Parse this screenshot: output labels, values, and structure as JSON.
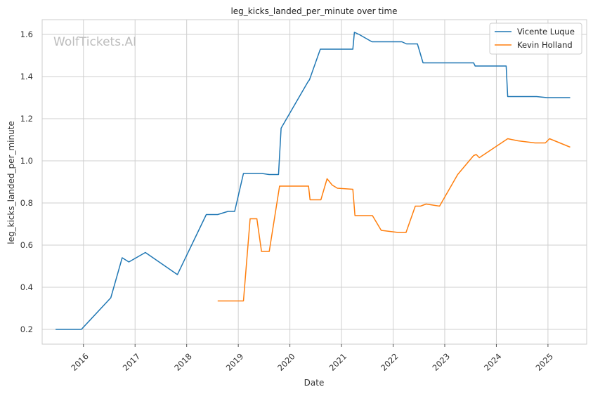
{
  "chart_data": {
    "type": "line",
    "title": "leg_kicks_landed_per_minute over time",
    "xlabel": "Date",
    "ylabel": "leg_kicks_landed_per_minute",
    "watermark": "WolfTickets.AI",
    "xlim": [
      2015.2,
      2025.75
    ],
    "ylim": [
      0.13,
      1.67
    ],
    "x_ticks": [
      2016,
      2017,
      2018,
      2019,
      2020,
      2021,
      2022,
      2023,
      2024,
      2025
    ],
    "x_tick_labels": [
      "2016",
      "2017",
      "2018",
      "2019",
      "2020",
      "2021",
      "2022",
      "2023",
      "2024",
      "2025"
    ],
    "y_ticks": [
      0.2,
      0.4,
      0.6,
      0.8,
      1.0,
      1.2,
      1.4,
      1.6
    ],
    "y_tick_labels": [
      "0.2",
      "0.4",
      "0.6",
      "0.8",
      "1.0",
      "1.2",
      "1.4",
      "1.6"
    ],
    "grid": true,
    "legend_position": "top-right",
    "series": [
      {
        "name": "Vicente Luque",
        "color": "#1f77b4",
        "x": [
          2015.46,
          2015.96,
          2016.53,
          2016.75,
          2016.88,
          2017.2,
          2017.82,
          2018.38,
          2018.6,
          2018.8,
          2018.93,
          2019.1,
          2019.46,
          2019.6,
          2019.78,
          2019.83,
          2020.35,
          2020.38,
          2020.59,
          2020.88,
          2021.22,
          2021.25,
          2021.34,
          2021.59,
          2022.17,
          2022.26,
          2022.47,
          2022.58,
          2023.56,
          2023.59,
          2024.05,
          2024.19,
          2024.22,
          2024.78,
          2024.98,
          2025.43
        ],
        "y": [
          0.2,
          0.2,
          0.35,
          0.54,
          0.52,
          0.565,
          0.46,
          0.745,
          0.745,
          0.76,
          0.76,
          0.94,
          0.94,
          0.935,
          0.935,
          1.155,
          1.375,
          1.385,
          1.53,
          1.53,
          1.53,
          1.61,
          1.6,
          1.565,
          1.565,
          1.555,
          1.555,
          1.465,
          1.465,
          1.45,
          1.45,
          1.45,
          1.305,
          1.305,
          1.3,
          1.3
        ]
      },
      {
        "name": "Kevin Holland",
        "color": "#ff7f0e",
        "x": [
          2018.6,
          2019.1,
          2019.23,
          2019.36,
          2019.45,
          2019.6,
          2019.8,
          2020.36,
          2020.39,
          2020.6,
          2020.72,
          2020.82,
          2020.92,
          2021.22,
          2021.26,
          2021.6,
          2021.77,
          2022.1,
          2022.25,
          2022.43,
          2022.53,
          2022.64,
          2022.9,
          2023.25,
          2023.56,
          2023.61,
          2023.67,
          2024.22,
          2024.42,
          2024.75,
          2024.95,
          2025.03,
          2025.13,
          2025.43
        ],
        "y": [
          0.335,
          0.335,
          0.725,
          0.725,
          0.57,
          0.57,
          0.88,
          0.88,
          0.815,
          0.815,
          0.915,
          0.885,
          0.87,
          0.865,
          0.74,
          0.74,
          0.67,
          0.66,
          0.66,
          0.785,
          0.785,
          0.795,
          0.785,
          0.935,
          1.025,
          1.03,
          1.015,
          1.105,
          1.095,
          1.085,
          1.085,
          1.105,
          1.095,
          1.065
        ]
      }
    ]
  }
}
